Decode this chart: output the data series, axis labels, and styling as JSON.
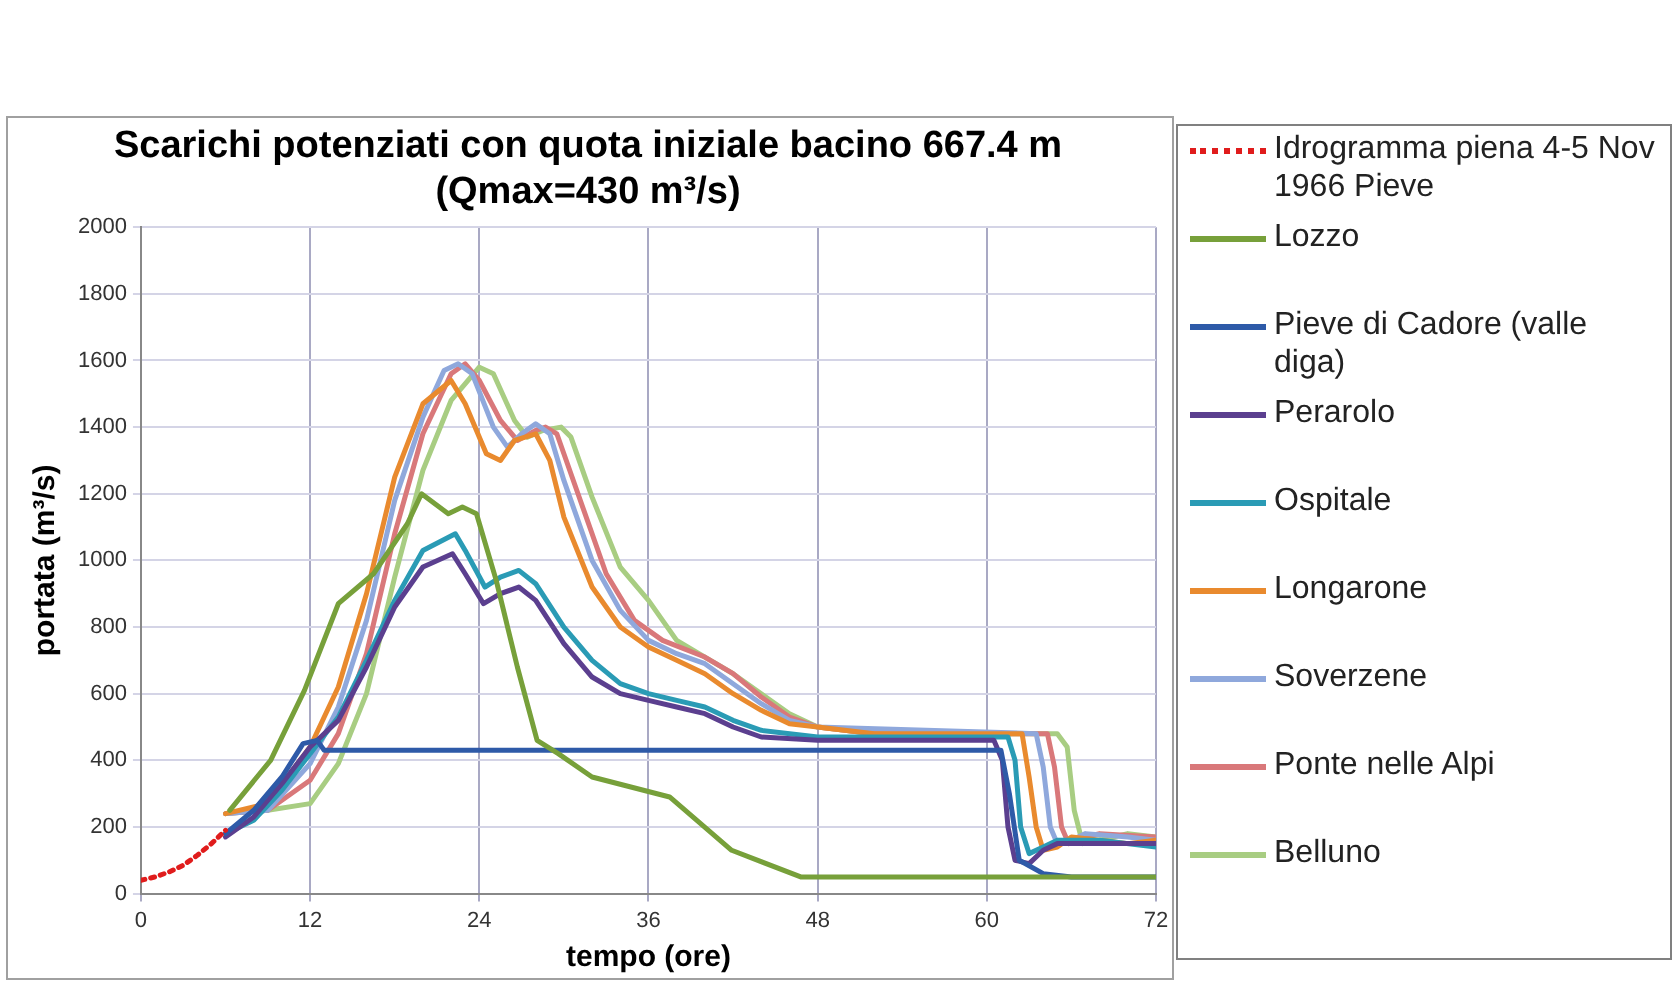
{
  "chart_data": {
    "type": "line",
    "title": "Scarichi potenziati con quota iniziale bacino 667.4 m\n(Qmax=430 m³/s)",
    "xlabel": "tempo (ore)",
    "ylabel": "portata (m³/s)",
    "xlim": [
      0,
      72
    ],
    "xticks": [
      0,
      12,
      24,
      36,
      48,
      60,
      72
    ],
    "ylim": [
      0,
      2000
    ],
    "yticks": [
      0,
      200,
      400,
      600,
      800,
      1000,
      1200,
      1400,
      1600,
      1800,
      2000
    ],
    "grid": true,
    "legend": "right",
    "marker": "none",
    "series": [
      {
        "name": "Idrogramma piena 4-5 Nov 1966 Pieve",
        "color": "#e01c1c",
        "line_style": "dotted",
        "x": [
          0,
          1,
          2,
          3,
          4,
          5,
          6
        ],
        "values": [
          40,
          50,
          65,
          85,
          115,
          150,
          190
        ]
      },
      {
        "name": "Lozzo",
        "color": "#77a03a",
        "x": [
          6.3,
          9.2,
          11.6,
          14,
          16.5,
          18.9,
          19.9,
          21.8,
          22.8,
          23.8,
          25.2,
          26.7,
          28.1,
          29.6,
          32,
          37.5,
          41.9,
          46.8,
          72
        ],
        "values": [
          250,
          400,
          610,
          870,
          960,
          1110,
          1200,
          1140,
          1160,
          1140,
          940,
          680,
          460,
          420,
          350,
          290,
          130,
          50,
          50
        ]
      },
      {
        "name": "Pieve di Cadore (valle diga)",
        "color": "#2e5aa8",
        "x": [
          6,
          8,
          10,
          11.5,
          12.5,
          13,
          61,
          61.6,
          62.3,
          64,
          66,
          72
        ],
        "values": [
          180,
          250,
          350,
          450,
          460,
          430,
          430,
          300,
          100,
          60,
          50,
          50
        ]
      },
      {
        "name": "Perarolo",
        "color": "#5b3f8f",
        "x": [
          6,
          8,
          10,
          12,
          14,
          16,
          18,
          20,
          22.1,
          23,
          24.3,
          25.5,
          26.8,
          28,
          30,
          32,
          34,
          36,
          38,
          40,
          42,
          44,
          48,
          60.5,
          61.1,
          61.5,
          62,
          63,
          64,
          65,
          68,
          72
        ],
        "values": [
          170,
          230,
          330,
          440,
          520,
          680,
          860,
          980,
          1020,
          960,
          870,
          900,
          920,
          880,
          750,
          650,
          600,
          580,
          560,
          540,
          500,
          470,
          460,
          460,
          400,
          200,
          100,
          90,
          130,
          150,
          150,
          150
        ]
      },
      {
        "name": "Ospitale",
        "color": "#2a9bb5",
        "x": [
          6,
          8,
          10,
          12,
          14,
          16,
          18,
          20,
          22.3,
          23,
          24.4,
          25.5,
          26.8,
          28,
          30,
          32,
          34,
          36,
          38,
          40,
          42,
          44,
          48,
          61.5,
          62,
          62.4,
          63,
          64,
          65,
          68,
          72
        ],
        "values": [
          180,
          220,
          310,
          420,
          530,
          700,
          880,
          1030,
          1080,
          1030,
          920,
          950,
          970,
          930,
          800,
          700,
          630,
          600,
          580,
          560,
          520,
          490,
          470,
          470,
          400,
          200,
          120,
          140,
          160,
          160,
          140
        ]
      },
      {
        "name": "Longarone",
        "color": "#e98a2e",
        "x": [
          6,
          9,
          12,
          14,
          16,
          18,
          20,
          22,
          23,
          24.5,
          25.5,
          26.5,
          28,
          29,
          30,
          32,
          34,
          36,
          38,
          40,
          42,
          44,
          46,
          48,
          52,
          62.5,
          63,
          63.5,
          64,
          65,
          66,
          68,
          70,
          72
        ],
        "values": [
          240,
          270,
          440,
          620,
          900,
          1250,
          1470,
          1540,
          1470,
          1320,
          1300,
          1360,
          1380,
          1300,
          1130,
          920,
          800,
          740,
          700,
          660,
          600,
          550,
          510,
          500,
          480,
          480,
          350,
          200,
          130,
          140,
          170,
          160,
          150,
          160
        ]
      },
      {
        "name": "Soverzene",
        "color": "#8fa8dc",
        "x": [
          6,
          9,
          12,
          14,
          16,
          18,
          20,
          21.5,
          22.5,
          23.5,
          25,
          26,
          27,
          28,
          29,
          30,
          32,
          34,
          36,
          38,
          40,
          42,
          44,
          46,
          48,
          63.5,
          64,
          64.5,
          65,
          66,
          67,
          70,
          72
        ],
        "values": [
          240,
          250,
          390,
          560,
          820,
          1180,
          1430,
          1570,
          1590,
          1560,
          1400,
          1340,
          1380,
          1410,
          1380,
          1240,
          1000,
          850,
          760,
          720,
          690,
          630,
          570,
          520,
          500,
          480,
          380,
          200,
          150,
          160,
          180,
          170,
          160
        ]
      },
      {
        "name": "Ponte nelle Alpi",
        "color": "#d9787a",
        "x": [
          6,
          9,
          12,
          14,
          16,
          18,
          20,
          22,
          23,
          24,
          25.5,
          26.7,
          28,
          28.7,
          29.5,
          31,
          33,
          35,
          37,
          40,
          42,
          44,
          46,
          48,
          52,
          64.3,
          64.8,
          65.3,
          65.8,
          67,
          68,
          72
        ],
        "values": [
          240,
          250,
          340,
          480,
          720,
          1080,
          1380,
          1560,
          1590,
          1540,
          1420,
          1360,
          1390,
          1400,
          1380,
          1200,
          960,
          820,
          760,
          710,
          660,
          590,
          530,
          500,
          480,
          480,
          380,
          200,
          150,
          170,
          180,
          170
        ]
      },
      {
        "name": "Belluno",
        "color": "#a8cd82",
        "x": [
          6,
          9,
          12,
          14,
          16,
          18,
          20,
          22,
          24,
          25,
          26.5,
          27.4,
          28.5,
          29.8,
          30.5,
          32,
          34,
          36,
          38,
          40,
          42,
          44,
          46,
          48,
          52,
          65,
          65.7,
          66.2,
          66.8,
          68,
          70,
          72
        ],
        "values": [
          240,
          250,
          270,
          390,
          600,
          950,
          1270,
          1480,
          1580,
          1560,
          1420,
          1370,
          1390,
          1400,
          1370,
          1190,
          980,
          880,
          760,
          710,
          660,
          600,
          540,
          500,
          480,
          480,
          440,
          250,
          150,
          160,
          180,
          170
        ]
      }
    ]
  }
}
